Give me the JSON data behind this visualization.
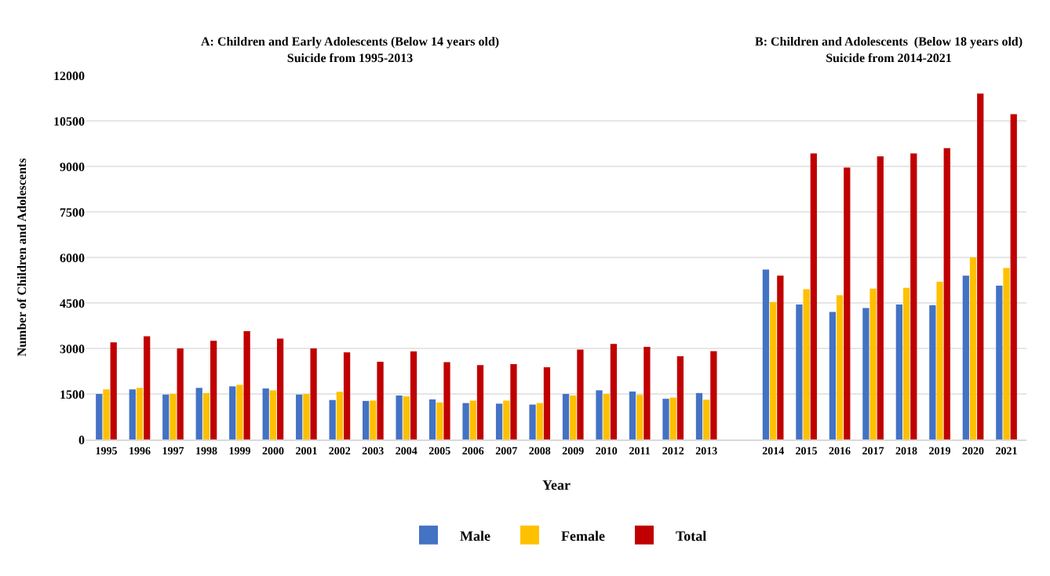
{
  "chart_data": {
    "type": "bar",
    "annotations": [
      "A: Children and Early Adolescents (Below 14 years old)\nSuicide from 1995-2013",
      "B: Children and Adolescents  (Below 18 years old)\nSuicide from 2014-2021"
    ],
    "xlabel": "Year",
    "ylabel": "Number of Children and Adolescents",
    "categories": [
      "1995",
      "1996",
      "1997",
      "1998",
      "1999",
      "2000",
      "2001",
      "2002",
      "2003",
      "2004",
      "2005",
      "2006",
      "2007",
      "2008",
      "2009",
      "2010",
      "2011",
      "2012",
      "2013",
      null,
      "2014",
      "2015",
      "2016",
      "2017",
      "2018",
      "2019",
      "2020",
      "2021"
    ],
    "series": [
      {
        "name": "Male",
        "color": "#4472c4",
        "values": [
          1500,
          1650,
          1480,
          1700,
          1750,
          1680,
          1480,
          1300,
          1270,
          1450,
          1320,
          1200,
          1180,
          1150,
          1500,
          1620,
          1580,
          1340,
          1530,
          null,
          5600,
          4450,
          4200,
          4330,
          4450,
          4420,
          5400,
          5070
        ]
      },
      {
        "name": "Female",
        "color": "#ffc000",
        "values": [
          1650,
          1700,
          1500,
          1530,
          1800,
          1620,
          1500,
          1570,
          1280,
          1420,
          1220,
          1280,
          1280,
          1200,
          1450,
          1500,
          1470,
          1380,
          1310,
          null,
          4530,
          4950,
          4750,
          4970,
          5000,
          5200,
          6000,
          5650
        ]
      },
      {
        "name": "Total",
        "color": "#c00000",
        "values": [
          3200,
          3400,
          3000,
          3250,
          3570,
          3320,
          3000,
          2870,
          2560,
          2900,
          2550,
          2450,
          2480,
          2380,
          2960,
          3150,
          3050,
          2740,
          2910,
          null,
          5400,
          9430,
          8960,
          9330,
          9430,
          9600,
          11400,
          10720
        ]
      }
    ],
    "ylim": [
      0,
      12000
    ],
    "yticks": [
      0,
      1500,
      3000,
      4500,
      6000,
      7500,
      9000,
      10500,
      12000
    ],
    "grid": "y",
    "legend": "bottom"
  }
}
